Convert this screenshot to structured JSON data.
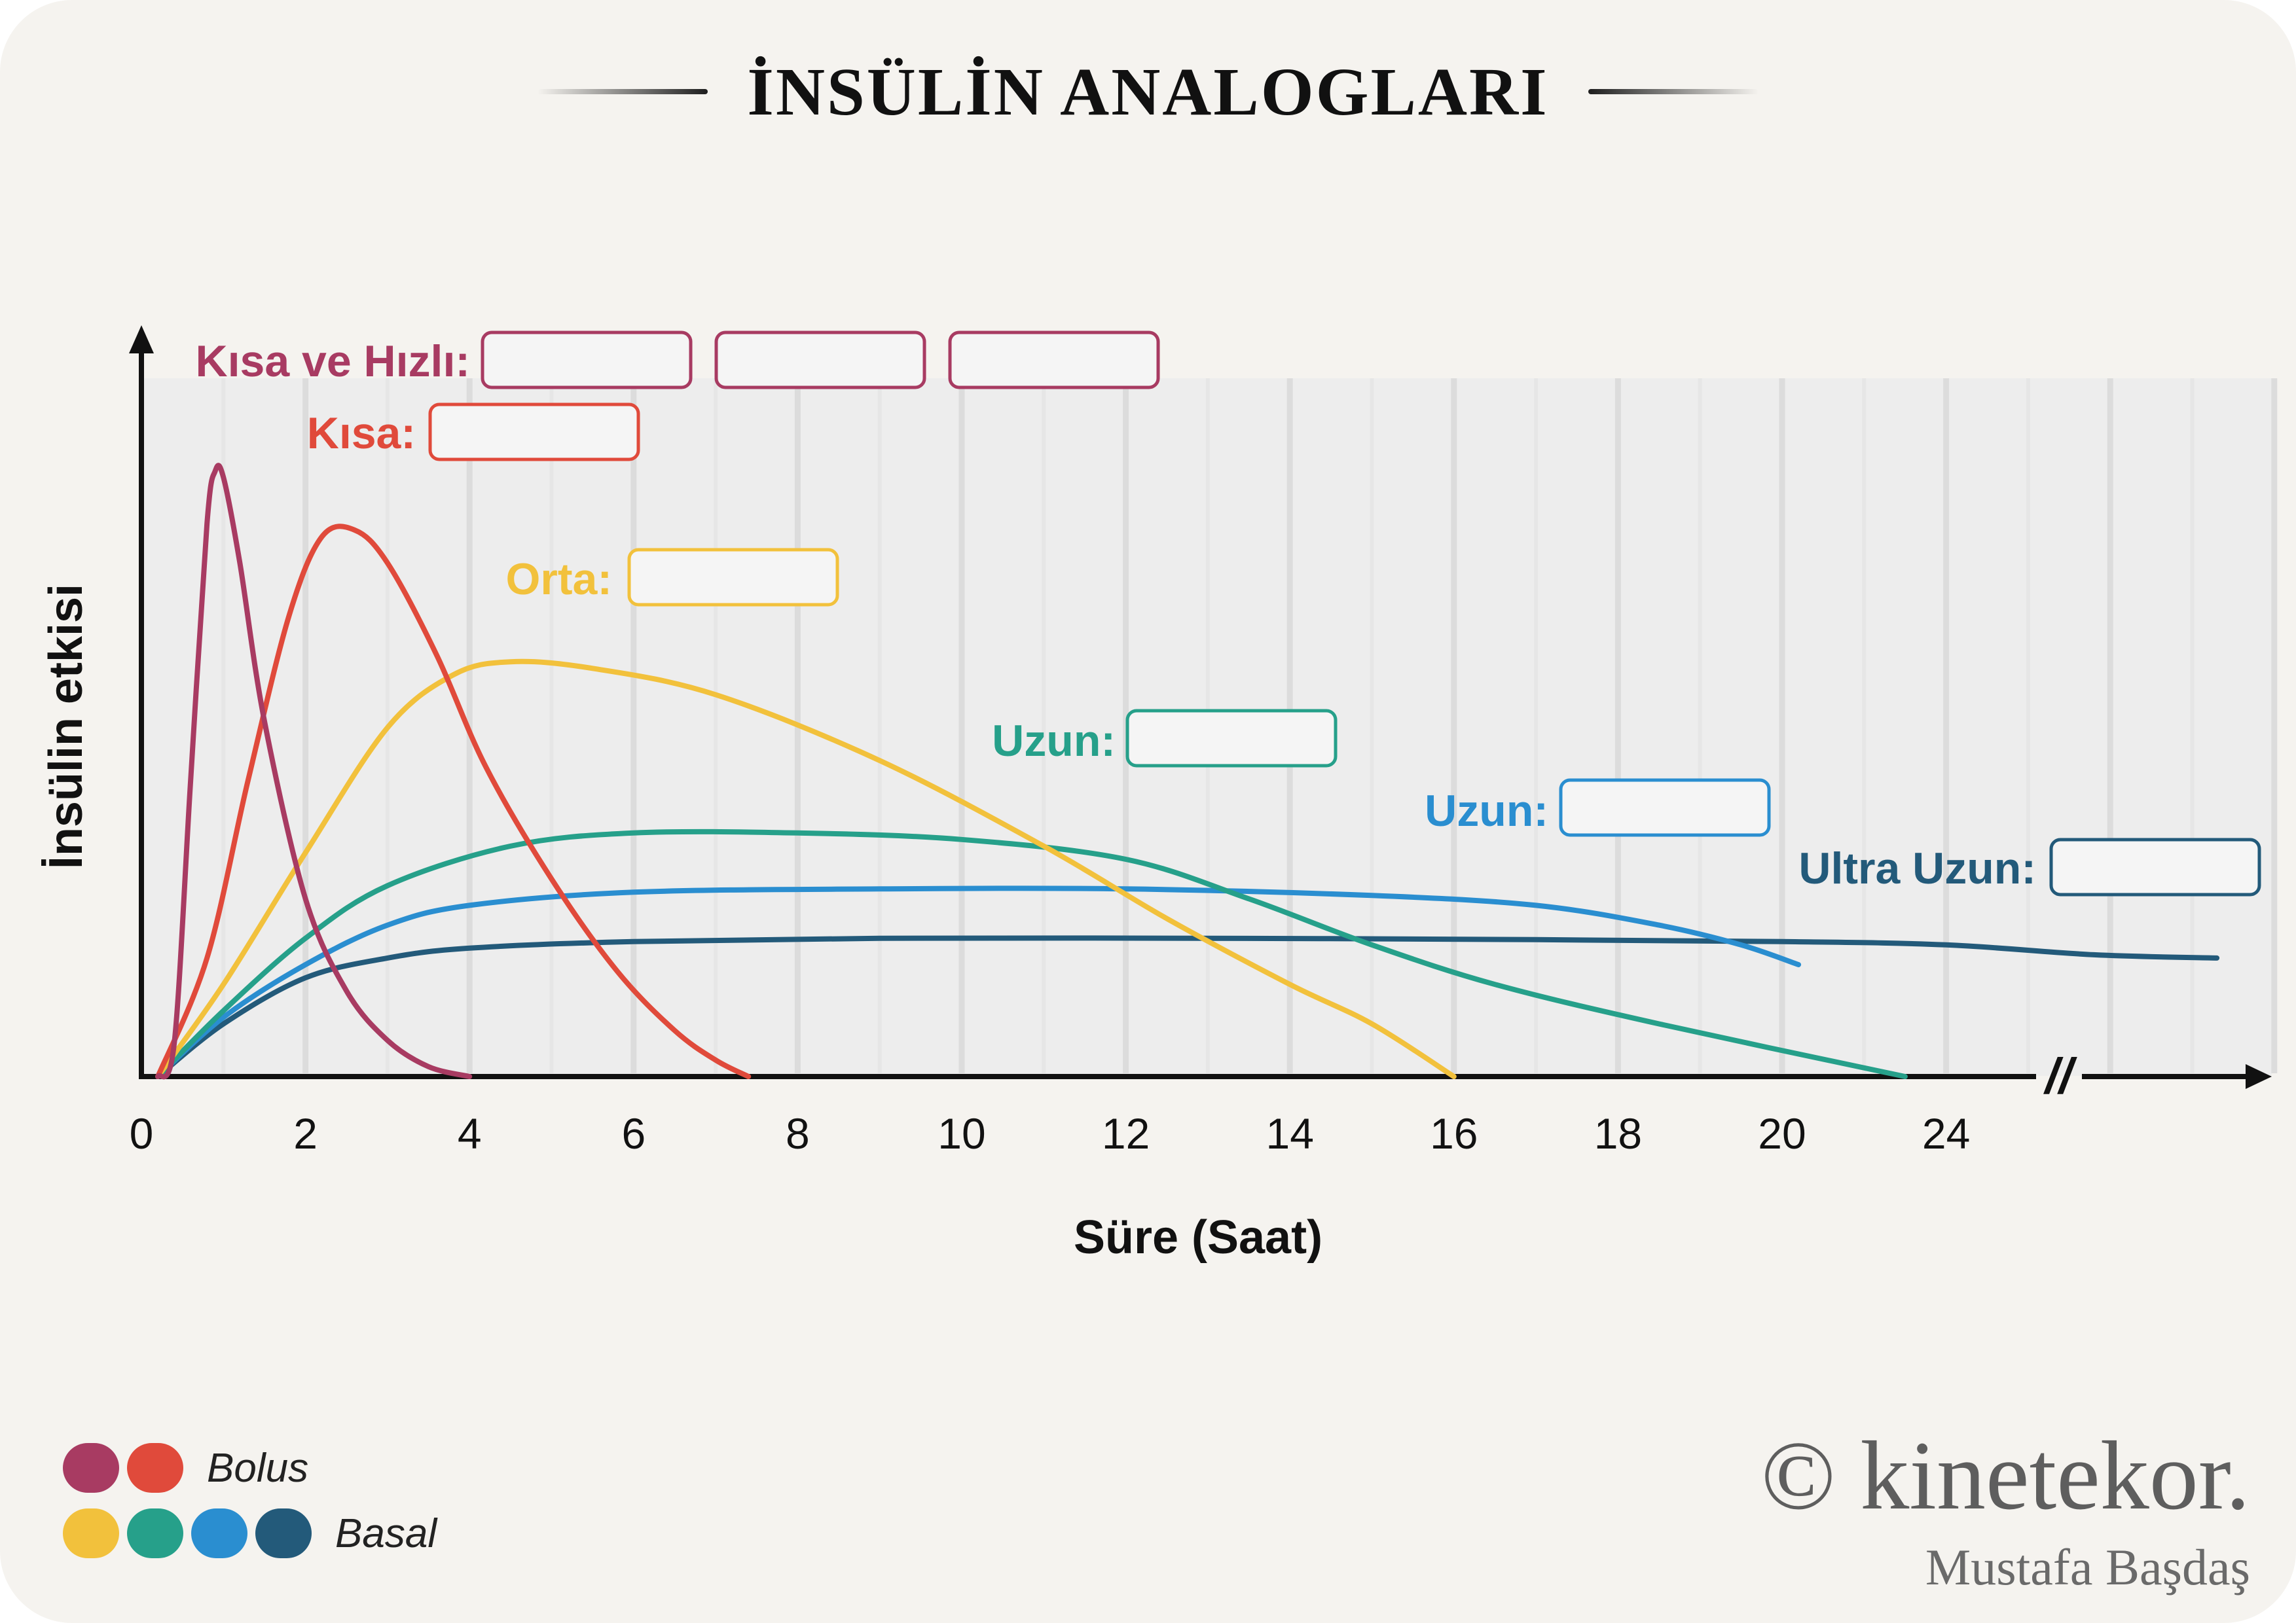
{
  "title": "İNSÜLİN ANALOGLARI",
  "legend": [
    {
      "label": "Bolus",
      "colors": [
        "#a83b62",
        "#e04a3b"
      ]
    },
    {
      "label": "Basal",
      "colors": [
        "#f2c13c",
        "#26a08a",
        "#2a8ed0",
        "#235a7a"
      ]
    }
  ],
  "brand": {
    "main": "© kinetekor.",
    "sub": "Mustafa Başdaş"
  },
  "chart_data": {
    "type": "line",
    "xlabel": "Süre (Saat)",
    "ylabel": "İnsülin etkisi",
    "x_ticks": [
      "0",
      "2",
      "4",
      "6",
      "8",
      "10",
      "12",
      "14",
      "16",
      "18",
      "20",
      "24"
    ],
    "axis_break": "//",
    "grid": "vertical",
    "series": [
      {
        "name": "Kısa ve Hızlı:",
        "color": "#a83b62",
        "label_boxes": 3,
        "points": [
          [
            0.2,
            0
          ],
          [
            0.4,
            5
          ],
          [
            0.6,
            45
          ],
          [
            0.8,
            84
          ],
          [
            0.9,
            92
          ],
          [
            1,
            91
          ],
          [
            1.2,
            78
          ],
          [
            1.5,
            54
          ],
          [
            2,
            27
          ],
          [
            2.5,
            13
          ],
          [
            3,
            5.5
          ],
          [
            3.5,
            1.5
          ],
          [
            4,
            0
          ]
        ]
      },
      {
        "name": "Kısa:",
        "color": "#e04a3b",
        "label_boxes": 1,
        "points": [
          [
            0.2,
            0
          ],
          [
            0.8,
            18
          ],
          [
            1.3,
            45
          ],
          [
            1.8,
            70
          ],
          [
            2.2,
            82
          ],
          [
            2.6,
            83
          ],
          [
            3,
            78
          ],
          [
            3.6,
            64
          ],
          [
            4.2,
            47
          ],
          [
            5,
            30
          ],
          [
            5.8,
            16
          ],
          [
            6.5,
            7
          ],
          [
            7,
            2.5
          ],
          [
            7.4,
            0
          ]
        ]
      },
      {
        "name": "Orta:",
        "color": "#f2c13c",
        "label_boxes": 1,
        "points": [
          [
            0.2,
            0
          ],
          [
            1,
            14
          ],
          [
            2,
            34
          ],
          [
            3,
            53
          ],
          [
            3.8,
            61
          ],
          [
            4.5,
            63
          ],
          [
            5.5,
            62
          ],
          [
            7,
            58
          ],
          [
            9,
            48
          ],
          [
            11,
            35
          ],
          [
            12.5,
            24
          ],
          [
            14,
            14
          ],
          [
            15,
            8
          ],
          [
            16,
            0
          ]
        ]
      },
      {
        "name": "Uzun:",
        "color": "#26a08a",
        "label_boxes": 1,
        "points": [
          [
            0.2,
            0
          ],
          [
            1,
            10
          ],
          [
            2,
            21
          ],
          [
            3,
            29
          ],
          [
            4.5,
            35
          ],
          [
            6,
            37
          ],
          [
            8,
            37
          ],
          [
            10,
            36
          ],
          [
            12,
            33
          ],
          [
            13.5,
            27
          ],
          [
            15,
            20
          ],
          [
            16.5,
            14
          ],
          [
            18.5,
            8
          ],
          [
            21.5,
            0
          ]
        ]
      },
      {
        "name": "Uzun:",
        "color": "#2a8ed0",
        "label_boxes": 1,
        "points": [
          [
            0.2,
            0
          ],
          [
            1,
            9
          ],
          [
            2,
            17
          ],
          [
            3,
            23
          ],
          [
            4,
            26
          ],
          [
            6,
            28
          ],
          [
            9,
            28.5
          ],
          [
            12,
            28.5
          ],
          [
            15,
            27.5
          ],
          [
            17,
            26
          ],
          [
            18.5,
            23
          ],
          [
            19.5,
            20
          ],
          [
            20.2,
            17
          ]
        ]
      },
      {
        "name": "Ultra Uzun:",
        "color": "#235a7a",
        "label_boxes": 1,
        "points": [
          [
            0.2,
            0
          ],
          [
            1,
            8
          ],
          [
            2,
            15
          ],
          [
            3,
            18
          ],
          [
            4,
            19.5
          ],
          [
            6,
            20.5
          ],
          [
            9,
            21
          ],
          [
            13,
            21
          ],
          [
            17,
            20.8
          ],
          [
            20,
            20.5
          ],
          [
            22,
            20
          ],
          [
            23.8,
            18.5
          ],
          [
            25.3,
            18
          ]
        ]
      }
    ]
  }
}
